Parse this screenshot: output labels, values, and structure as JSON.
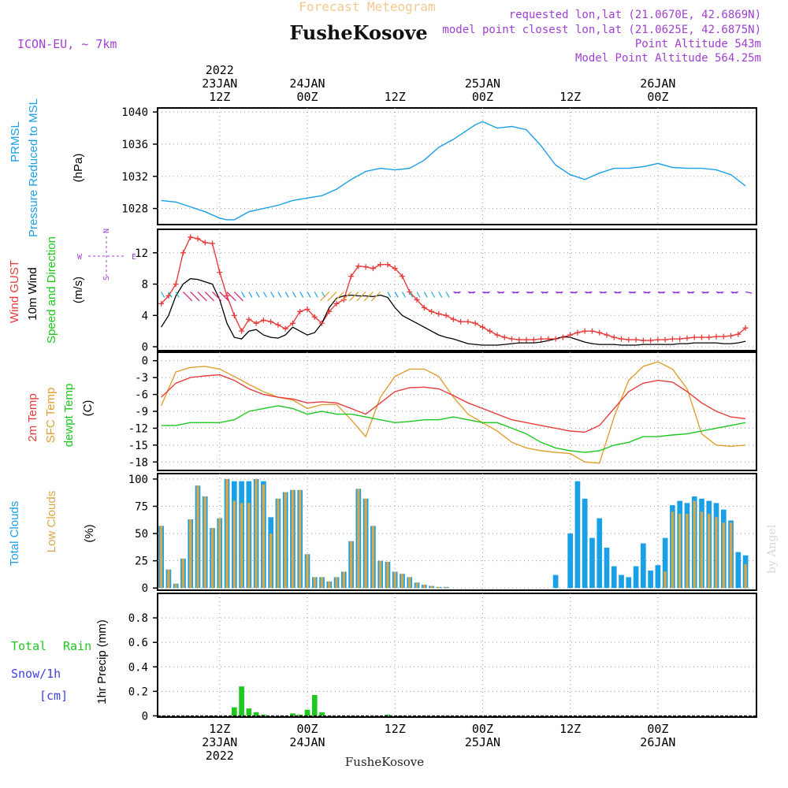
{
  "header": {
    "main_title": "Forecast Meteogram",
    "location": "FusheKosove",
    "model": "ICON-EU, ~ 7km",
    "requested": "requested lon,lat (21.0670E, 42.6869N)",
    "closest": "model point closest lon,lat (21.0625E, 42.6875N)",
    "point_alt": "Point Altitude 543m",
    "model_alt": "Model Point Altitude 564.25m"
  },
  "footer": {
    "location": "FusheKosove",
    "credit": "by Angel"
  },
  "time_axis": {
    "top_ticks": [
      {
        "lines": [
          "2022",
          "23JAN",
          "12Z"
        ],
        "h": 12
      },
      {
        "lines": [
          "24JAN",
          "00Z"
        ],
        "h": 24
      },
      {
        "lines": [
          "12Z"
        ],
        "h": 36
      },
      {
        "lines": [
          "25JAN",
          "00Z"
        ],
        "h": 48
      },
      {
        "lines": [
          "12Z"
        ],
        "h": 60
      },
      {
        "lines": [
          "26JAN",
          "00Z"
        ],
        "h": 72
      }
    ],
    "bottom_ticks": [
      {
        "lines": [
          "12Z",
          "23JAN",
          "2022"
        ],
        "h": 12
      },
      {
        "lines": [
          "00Z",
          "24JAN"
        ],
        "h": 24
      },
      {
        "lines": [
          "12Z"
        ],
        "h": 36
      },
      {
        "lines": [
          "00Z",
          "25JAN"
        ],
        "h": 48
      },
      {
        "lines": [
          "12Z"
        ],
        "h": 60
      },
      {
        "lines": [
          "00Z",
          "26JAN"
        ],
        "h": 72
      }
    ]
  },
  "panel_labels": {
    "pressure": {
      "a": "PRMSL",
      "b": "Pressure Reduced to MSL",
      "unit": "(hPa)"
    },
    "wind": {
      "a": "Wind GUST",
      "b": "10m Wind",
      "c": "Speed and Direction",
      "unit": "(m/s)",
      "compass": {
        "w": "W",
        "e": "E",
        "n": "N",
        "s": "S"
      }
    },
    "temp": {
      "a": "2m Temp",
      "b": "SFC Temp",
      "c": "dewpt Temp",
      "unit": "(C)"
    },
    "clouds": {
      "a": "Total Clouds",
      "b": "Low Clouds",
      "unit": "(%)"
    },
    "precip": {
      "a": "Total",
      "b": "Rain",
      "c": "Snow/1h",
      "d": "[cm]",
      "unit": "1hr Precip (mm)"
    }
  },
  "colors": {
    "pressure": "#1aa0e6",
    "gust": "#e83c3c",
    "wind": "#000000",
    "temp2m": "#e83c3c",
    "sfc": "#e0a030",
    "dewpt": "#1ec81e",
    "total_clouds": "#1aa0e6",
    "low_clouds": "#d8a848",
    "rain": "#1ec81e",
    "title": "#f2c890",
    "info": "#a040d0",
    "snow": "#4040e0"
  },
  "chart_data": [
    {
      "type": "line",
      "name": "pressure",
      "ylabel": "(hPa)",
      "ylim": [
        1026,
        1040.5
      ],
      "yticks": [
        1028,
        1032,
        1036,
        1040
      ],
      "x_hours": [
        4,
        6,
        8,
        10,
        12,
        13,
        14,
        16,
        18,
        20,
        22,
        24,
        26,
        28,
        30,
        32,
        34,
        36,
        38,
        40,
        42,
        44,
        46,
        47,
        48,
        50,
        52,
        54,
        56,
        58,
        60,
        62,
        64,
        66,
        68,
        70,
        72,
        74,
        76,
        78,
        80,
        82,
        84
      ],
      "series": [
        {
          "name": "PRMSL",
          "values": [
            1029.0,
            1028.8,
            1028.2,
            1027.6,
            1026.8,
            1026.6,
            1026.6,
            1027.6,
            1028.0,
            1028.4,
            1029.0,
            1029.3,
            1029.6,
            1030.4,
            1031.6,
            1032.6,
            1033.0,
            1032.8,
            1033.0,
            1034.0,
            1035.6,
            1036.6,
            1037.8,
            1038.4,
            1038.8,
            1038.0,
            1038.2,
            1037.8,
            1035.8,
            1033.4,
            1032.2,
            1031.6,
            1032.4,
            1033.0,
            1033.0,
            1033.2,
            1033.6,
            1033.1,
            1033.0,
            1033.0,
            1032.8,
            1032.2,
            1030.8
          ]
        }
      ]
    },
    {
      "type": "line",
      "name": "wind",
      "ylabel": "(m/s)",
      "ylim": [
        -0.5,
        15
      ],
      "yticks": [
        0,
        4,
        8,
        12
      ],
      "x_hours": [
        4,
        5,
        6,
        7,
        8,
        9,
        10,
        11,
        12,
        13,
        14,
        15,
        16,
        17,
        18,
        19,
        20,
        21,
        22,
        23,
        24,
        25,
        26,
        27,
        28,
        29,
        30,
        31,
        32,
        33,
        34,
        35,
        36,
        37,
        38,
        39,
        40,
        41,
        42,
        43,
        44,
        45,
        46,
        47,
        48,
        49,
        50,
        51,
        52,
        53,
        54,
        55,
        56,
        57,
        58,
        59,
        60,
        61,
        62,
        63,
        64,
        65,
        66,
        67,
        68,
        69,
        70,
        71,
        72,
        73,
        74,
        75,
        76,
        77,
        78,
        79,
        80,
        81,
        82,
        83,
        84
      ],
      "series": [
        {
          "name": "Wind GUST",
          "values": [
            5.5,
            6.5,
            8.0,
            12.0,
            14.0,
            13.8,
            13.3,
            13.2,
            9.5,
            6.5,
            4.0,
            2.0,
            3.5,
            3.0,
            3.4,
            3.2,
            2.8,
            2.3,
            3.0,
            4.5,
            4.8,
            3.8,
            3.0,
            4.5,
            5.5,
            6.0,
            9.0,
            10.3,
            10.2,
            10.0,
            10.5,
            10.5,
            10.0,
            9.0,
            7.0,
            6.0,
            5.0,
            4.5,
            4.2,
            4.0,
            3.5,
            3.2,
            3.2,
            3.0,
            2.5,
            2.0,
            1.5,
            1.2,
            1.0,
            0.9,
            0.9,
            0.9,
            1.0,
            1.0,
            1.0,
            1.2,
            1.5,
            1.8,
            2.0,
            2.0,
            1.8,
            1.5,
            1.2,
            1.0,
            0.9,
            0.9,
            0.8,
            0.8,
            0.9,
            0.9,
            1.0,
            1.0,
            1.1,
            1.2,
            1.2,
            1.2,
            1.3,
            1.3,
            1.4,
            1.6,
            2.4
          ]
        },
        {
          "name": "10m Wind",
          "values": [
            2.5,
            4.0,
            6.5,
            8.0,
            8.7,
            8.6,
            8.3,
            8.0,
            6.0,
            3.0,
            1.2,
            1.0,
            2.0,
            2.2,
            1.5,
            1.2,
            1.1,
            1.5,
            2.5,
            2.0,
            1.5,
            1.8,
            3.0,
            5.0,
            6.2,
            6.5,
            6.6,
            6.5,
            6.5,
            6.4,
            6.6,
            6.3,
            5.0,
            4.0,
            3.5,
            3.0,
            2.5,
            2.0,
            1.5,
            1.2,
            1.0,
            0.7,
            0.4,
            0.3,
            0.2,
            0.2,
            0.2,
            0.3,
            0.4,
            0.5,
            0.5,
            0.5,
            0.6,
            0.8,
            1.0,
            1.3,
            1.2,
            0.9,
            0.6,
            0.4,
            0.3,
            0.3,
            0.3,
            0.2,
            0.2,
            0.2,
            0.3,
            0.3,
            0.3,
            0.3,
            0.3,
            0.4,
            0.4,
            0.5,
            0.5,
            0.5,
            0.5,
            0.4,
            0.4,
            0.5,
            0.7
          ]
        }
      ]
    },
    {
      "type": "line",
      "name": "temperature",
      "ylabel": "(C)",
      "ylim": [
        -19.5,
        1.5
      ],
      "yticks": [
        0,
        -3,
        -6,
        -9,
        -12,
        -15,
        -18
      ],
      "x_hours": [
        4,
        6,
        8,
        10,
        12,
        14,
        16,
        18,
        20,
        22,
        24,
        26,
        28,
        30,
        32,
        34,
        36,
        38,
        40,
        42,
        44,
        46,
        48,
        50,
        52,
        54,
        56,
        58,
        60,
        62,
        64,
        66,
        68,
        70,
        72,
        74,
        76,
        78,
        80,
        82,
        84
      ],
      "series": [
        {
          "name": "2m Temp",
          "values": [
            -6.5,
            -4.0,
            -3.0,
            -2.7,
            -2.5,
            -3.5,
            -5.0,
            -6.0,
            -6.5,
            -6.8,
            -7.5,
            -7.3,
            -7.5,
            -8.5,
            -9.5,
            -7.5,
            -5.5,
            -4.8,
            -4.7,
            -5.0,
            -6.2,
            -7.5,
            -8.5,
            -9.5,
            -10.5,
            -11.0,
            -11.5,
            -12.0,
            -12.5,
            -12.7,
            -11.5,
            -8.5,
            -5.5,
            -4.0,
            -3.5,
            -3.8,
            -5.5,
            -7.5,
            -9.0,
            -10.0,
            -10.3
          ]
        },
        {
          "name": "SFC Temp",
          "values": [
            -8.0,
            -2.0,
            -1.2,
            -1.0,
            -1.5,
            -2.8,
            -4.2,
            -5.5,
            -6.5,
            -7.0,
            -8.5,
            -7.8,
            -7.8,
            -10.5,
            -13.5,
            -6.5,
            -2.8,
            -1.5,
            -1.5,
            -2.8,
            -6.5,
            -9.5,
            -11.0,
            -12.5,
            -14.5,
            -15.5,
            -16.0,
            -16.3,
            -16.5,
            -18.0,
            -18.2,
            -10.0,
            -3.5,
            -1.0,
            -0.2,
            -1.5,
            -5.0,
            -13.0,
            -15.0,
            -15.2,
            -15.0
          ]
        },
        {
          "name": "dewpt Temp",
          "values": [
            -11.5,
            -11.5,
            -11.0,
            -11.0,
            -11.0,
            -10.5,
            -9.0,
            -8.5,
            -8.0,
            -8.5,
            -9.5,
            -9.0,
            -9.5,
            -9.5,
            -10.0,
            -10.5,
            -11.0,
            -10.8,
            -10.5,
            -10.5,
            -10.0,
            -10.5,
            -11.0,
            -11.0,
            -12.0,
            -13.0,
            -14.5,
            -15.5,
            -16.0,
            -16.3,
            -16.0,
            -15.0,
            -14.5,
            -13.5,
            -13.5,
            -13.2,
            -13.0,
            -12.5,
            -12.0,
            -11.5,
            -11.0
          ]
        }
      ]
    },
    {
      "type": "bar",
      "name": "clouds",
      "ylabel": "(%)",
      "ylim": [
        -2,
        105
      ],
      "yticks": [
        0,
        25,
        50,
        75,
        100
      ],
      "x_hours": [
        4,
        5,
        6,
        7,
        8,
        9,
        10,
        11,
        12,
        13,
        14,
        15,
        16,
        17,
        18,
        19,
        20,
        21,
        22,
        23,
        24,
        25,
        26,
        27,
        28,
        29,
        30,
        31,
        32,
        33,
        34,
        35,
        36,
        37,
        38,
        39,
        40,
        41,
        42,
        43,
        44,
        45,
        46,
        47,
        48,
        49,
        50,
        51,
        52,
        53,
        54,
        55,
        56,
        57,
        58,
        59,
        60,
        61,
        62,
        63,
        64,
        65,
        66,
        67,
        68,
        69,
        70,
        71,
        72,
        73,
        74,
        75,
        76,
        77,
        78,
        79,
        80,
        81,
        82,
        83,
        84
      ],
      "series": [
        {
          "name": "Total Clouds",
          "values": [
            57,
            17,
            4,
            27,
            63,
            94,
            84,
            55,
            64,
            100,
            98,
            98,
            98,
            100,
            98,
            65,
            82,
            88,
            90,
            90,
            31,
            10,
            10,
            6,
            10,
            15,
            43,
            91,
            82,
            57,
            25,
            24,
            15,
            13,
            10,
            5,
            3,
            2,
            1,
            1,
            0,
            0,
            0,
            0,
            0,
            0,
            0,
            0,
            0,
            0,
            0,
            0,
            0,
            0,
            12,
            0,
            50,
            98,
            82,
            46,
            64,
            37,
            20,
            12,
            10,
            20,
            41,
            16,
            21,
            46,
            76,
            80,
            78,
            84,
            82,
            80,
            78,
            72,
            62,
            33,
            30
          ]
        },
        {
          "name": "Low Clouds",
          "values": [
            57,
            17,
            4,
            27,
            63,
            94,
            84,
            55,
            64,
            100,
            80,
            78,
            78,
            100,
            95,
            50,
            82,
            88,
            90,
            90,
            31,
            10,
            10,
            6,
            10,
            15,
            43,
            91,
            82,
            57,
            25,
            24,
            15,
            13,
            10,
            5,
            3,
            2,
            1,
            1,
            0,
            0,
            0,
            0,
            0,
            0,
            0,
            0,
            0,
            0,
            0,
            0,
            0,
            0,
            0,
            0,
            0,
            0,
            0,
            0,
            0,
            0,
            0,
            0,
            0,
            0,
            0,
            0,
            0,
            15,
            70,
            68,
            68,
            80,
            70,
            68,
            65,
            60,
            60,
            0,
            22
          ]
        }
      ]
    },
    {
      "type": "bar",
      "name": "precip",
      "ylabel": "1hr Precip (mm)",
      "ylim": [
        -0.01,
        1.0
      ],
      "yticks": [
        0,
        0.2,
        0.4,
        0.6,
        0.8
      ],
      "x_hours": [
        14,
        15,
        16,
        17,
        18,
        22,
        23,
        24,
        25,
        26,
        35
      ],
      "series": [
        {
          "name": "Total Rain",
          "values": [
            0.07,
            0.24,
            0.06,
            0.03,
            0.01,
            0.02,
            0.01,
            0.05,
            0.17,
            0.03,
            0.01
          ]
        }
      ]
    }
  ]
}
